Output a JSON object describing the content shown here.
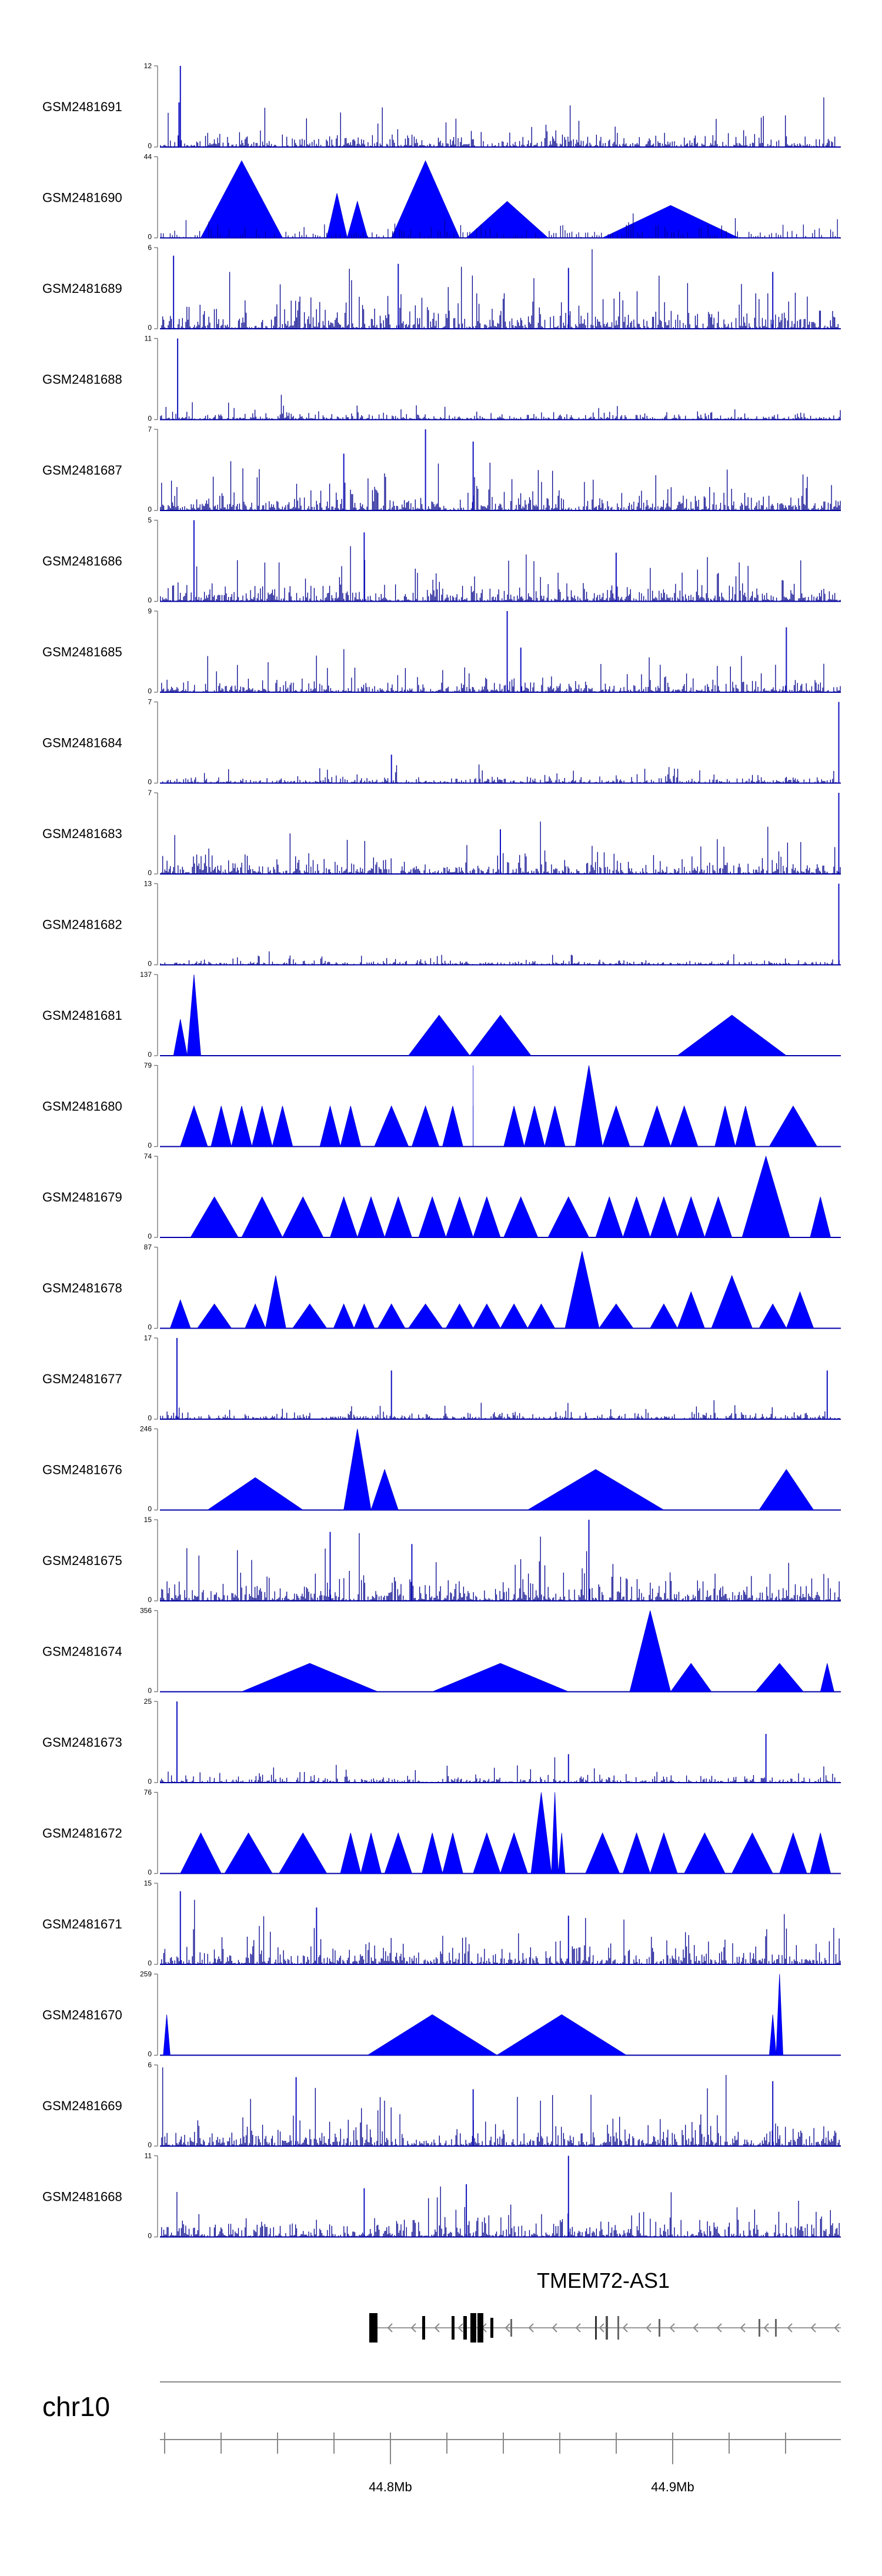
{
  "chart_data": {
    "type": "area",
    "title": "",
    "chromosome": "chr10",
    "gene": "TMEM72-AS1",
    "x_ticks": [
      "44.8Mb",
      "44.9Mb"
    ],
    "color": "#0000ff",
    "tracks": [
      {
        "name": "GSM2481691",
        "ymax": "12",
        "ymin": "0",
        "style": "dense",
        "peaks": [
          [
            0.03,
            1.0
          ],
          [
            0.028,
            0.55
          ]
        ],
        "noise": 0.3
      },
      {
        "name": "GSM2481690",
        "ymax": "44",
        "ymin": "0",
        "style": "triangles",
        "peaks": [
          [
            0.12,
            0.95
          ],
          [
            0.26,
            0.55
          ],
          [
            0.29,
            0.45
          ],
          [
            0.39,
            0.95
          ],
          [
            0.51,
            0.45
          ],
          [
            0.75,
            0.4
          ]
        ],
        "noise": 0.35
      },
      {
        "name": "GSM2481689",
        "ymax": "6",
        "ymin": "0",
        "style": "dense",
        "peaks": [
          [
            0.02,
            0.9
          ],
          [
            0.35,
            0.8
          ],
          [
            0.6,
            0.75
          ],
          [
            0.9,
            0.7
          ]
        ],
        "noise": 0.55
      },
      {
        "name": "GSM2481688",
        "ymax": "11",
        "ymin": "0",
        "style": "dense",
        "peaks": [
          [
            0.026,
            1.0
          ]
        ],
        "noise": 0.15
      },
      {
        "name": "GSM2481687",
        "ymax": "7",
        "ymin": "0",
        "style": "dense",
        "peaks": [
          [
            0.39,
            1.0
          ],
          [
            0.46,
            0.85
          ],
          [
            0.27,
            0.7
          ]
        ],
        "noise": 0.45
      },
      {
        "name": "GSM2481686",
        "ymax": "5",
        "ymin": "0",
        "style": "dense",
        "peaks": [
          [
            0.05,
            1.0
          ],
          [
            0.3,
            0.85
          ],
          [
            0.67,
            0.6
          ]
        ],
        "noise": 0.4
      },
      {
        "name": "GSM2481685",
        "ymax": "9",
        "ymin": "0",
        "style": "dense",
        "peaks": [
          [
            0.51,
            1.0
          ],
          [
            0.92,
            0.8
          ],
          [
            0.53,
            0.55
          ]
        ],
        "noise": 0.3
      },
      {
        "name": "GSM2481684",
        "ymax": "7",
        "ymin": "0",
        "style": "dense",
        "peaks": [
          [
            0.997,
            1.0
          ],
          [
            0.34,
            0.35
          ]
        ],
        "noise": 0.15
      },
      {
        "name": "GSM2481683",
        "ymax": "7",
        "ymin": "0",
        "style": "dense",
        "peaks": [
          [
            0.997,
            1.0
          ],
          [
            0.5,
            0.55
          ]
        ],
        "noise": 0.35
      },
      {
        "name": "GSM2481682",
        "ymax": "13",
        "ymin": "0",
        "style": "dense",
        "peaks": [
          [
            0.997,
            1.0
          ]
        ],
        "noise": 0.1
      },
      {
        "name": "GSM2481681",
        "ymax": "137",
        "ymin": "0",
        "style": "triangles",
        "peaks": [
          [
            0.03,
            0.45
          ],
          [
            0.05,
            1.0
          ],
          [
            0.41,
            0.5
          ],
          [
            0.5,
            0.5
          ],
          [
            0.84,
            0.5
          ]
        ],
        "noise": 0
      },
      {
        "name": "GSM2481680",
        "ymax": "79",
        "ymin": "0",
        "style": "triangles",
        "peaks": [
          [
            0.05,
            0.5
          ],
          [
            0.09,
            0.5
          ],
          [
            0.12,
            0.5
          ],
          [
            0.15,
            0.5
          ],
          [
            0.18,
            0.5
          ],
          [
            0.25,
            0.5
          ],
          [
            0.28,
            0.5
          ],
          [
            0.34,
            0.5
          ],
          [
            0.39,
            0.5
          ],
          [
            0.43,
            0.5
          ],
          [
            0.46,
            0.5
          ],
          [
            0.46,
            1.0
          ],
          [
            0.52,
            0.5
          ],
          [
            0.55,
            0.5
          ],
          [
            0.58,
            0.5
          ],
          [
            0.63,
            1.0
          ],
          [
            0.67,
            0.5
          ],
          [
            0.73,
            0.5
          ],
          [
            0.77,
            0.5
          ],
          [
            0.83,
            0.5
          ],
          [
            0.86,
            0.5
          ],
          [
            0.93,
            0.5
          ]
        ],
        "noise": 0
      },
      {
        "name": "GSM2481679",
        "ymax": "74",
        "ymin": "0",
        "style": "triangles",
        "peaks": [
          [
            0.08,
            0.5
          ],
          [
            0.15,
            0.5
          ],
          [
            0.21,
            0.5
          ],
          [
            0.27,
            0.5
          ],
          [
            0.31,
            0.5
          ],
          [
            0.35,
            0.5
          ],
          [
            0.4,
            0.5
          ],
          [
            0.44,
            0.5
          ],
          [
            0.48,
            0.5
          ],
          [
            0.53,
            0.5
          ],
          [
            0.6,
            0.5
          ],
          [
            0.66,
            0.5
          ],
          [
            0.7,
            0.5
          ],
          [
            0.74,
            0.5
          ],
          [
            0.78,
            0.5
          ],
          [
            0.82,
            0.5
          ],
          [
            0.89,
            1.0
          ],
          [
            0.97,
            0.5
          ]
        ],
        "noise": 0
      },
      {
        "name": "GSM2481678",
        "ymax": "87",
        "ymin": "0",
        "style": "triangles",
        "peaks": [
          [
            0.03,
            0.35
          ],
          [
            0.08,
            0.3
          ],
          [
            0.14,
            0.3
          ],
          [
            0.17,
            0.65
          ],
          [
            0.22,
            0.3
          ],
          [
            0.27,
            0.3
          ],
          [
            0.3,
            0.3
          ],
          [
            0.34,
            0.3
          ],
          [
            0.39,
            0.3
          ],
          [
            0.44,
            0.3
          ],
          [
            0.48,
            0.3
          ],
          [
            0.52,
            0.3
          ],
          [
            0.56,
            0.3
          ],
          [
            0.62,
            0.95
          ],
          [
            0.67,
            0.3
          ],
          [
            0.74,
            0.3
          ],
          [
            0.78,
            0.45
          ],
          [
            0.84,
            0.65
          ],
          [
            0.9,
            0.3
          ],
          [
            0.94,
            0.45
          ]
        ],
        "noise": 0
      },
      {
        "name": "GSM2481677",
        "ymax": "17",
        "ymin": "0",
        "style": "dense",
        "peaks": [
          [
            0.025,
            1.0
          ],
          [
            0.34,
            0.6
          ],
          [
            0.98,
            0.6
          ]
        ],
        "noise": 0.15
      },
      {
        "name": "GSM2481676",
        "ymax": "246",
        "ymin": "0",
        "style": "triangles",
        "peaks": [
          [
            0.14,
            0.4
          ],
          [
            0.29,
            1.0
          ],
          [
            0.33,
            0.5
          ],
          [
            0.64,
            0.5
          ],
          [
            0.92,
            0.5
          ]
        ],
        "noise": 0
      },
      {
        "name": "GSM2481675",
        "ymax": "15",
        "ymin": "0",
        "style": "dense",
        "peaks": [
          [
            0.25,
            0.85
          ],
          [
            0.63,
            1.0
          ],
          [
            0.37,
            0.7
          ]
        ],
        "noise": 0.5
      },
      {
        "name": "GSM2481674",
        "ymax": "356",
        "ymin": "0",
        "style": "triangles",
        "peaks": [
          [
            0.22,
            0.35
          ],
          [
            0.5,
            0.35
          ],
          [
            0.72,
            1.0
          ],
          [
            0.78,
            0.35
          ],
          [
            0.91,
            0.35
          ],
          [
            0.98,
            0.35
          ]
        ],
        "noise": 0
      },
      {
        "name": "GSM2481673",
        "ymax": "25",
        "ymin": "0",
        "style": "dense",
        "peaks": [
          [
            0.025,
            1.0
          ],
          [
            0.89,
            0.6
          ],
          [
            0.6,
            0.35
          ]
        ],
        "noise": 0.15
      },
      {
        "name": "GSM2481672",
        "ymax": "76",
        "ymin": "0",
        "style": "triangles",
        "peaks": [
          [
            0.06,
            0.5
          ],
          [
            0.13,
            0.5
          ],
          [
            0.21,
            0.5
          ],
          [
            0.28,
            0.5
          ],
          [
            0.31,
            0.5
          ],
          [
            0.35,
            0.5
          ],
          [
            0.4,
            0.5
          ],
          [
            0.43,
            0.5
          ],
          [
            0.48,
            0.5
          ],
          [
            0.52,
            0.5
          ],
          [
            0.56,
            1.0
          ],
          [
            0.59,
            0.5
          ],
          [
            0.58,
            1.0
          ],
          [
            0.65,
            0.5
          ],
          [
            0.7,
            0.5
          ],
          [
            0.74,
            0.5
          ],
          [
            0.8,
            0.5
          ],
          [
            0.87,
            0.5
          ],
          [
            0.93,
            0.5
          ],
          [
            0.97,
            0.5
          ]
        ],
        "noise": 0
      },
      {
        "name": "GSM2481671",
        "ymax": "15",
        "ymin": "0",
        "style": "dense",
        "peaks": [
          [
            0.03,
            0.9
          ],
          [
            0.23,
            0.7
          ],
          [
            0.6,
            0.6
          ]
        ],
        "noise": 0.45
      },
      {
        "name": "GSM2481670",
        "ymax": "259",
        "ymin": "0",
        "style": "triangles",
        "peaks": [
          [
            0.01,
            0.5
          ],
          [
            0.4,
            0.5
          ],
          [
            0.59,
            0.5
          ],
          [
            0.9,
            0.5
          ],
          [
            0.91,
            1.0
          ]
        ],
        "noise": 0
      },
      {
        "name": "GSM2481669",
        "ymax": "6",
        "ymin": "0",
        "style": "dense",
        "peaks": [
          [
            0.2,
            0.85
          ],
          [
            0.9,
            0.8
          ],
          [
            0.46,
            0.7
          ]
        ],
        "noise": 0.5
      },
      {
        "name": "GSM2481668",
        "ymax": "11",
        "ymin": "0",
        "style": "dense",
        "peaks": [
          [
            0.6,
            1.0
          ],
          [
            0.45,
            0.65
          ],
          [
            0.3,
            0.6
          ]
        ],
        "noise": 0.45
      }
    ]
  }
}
